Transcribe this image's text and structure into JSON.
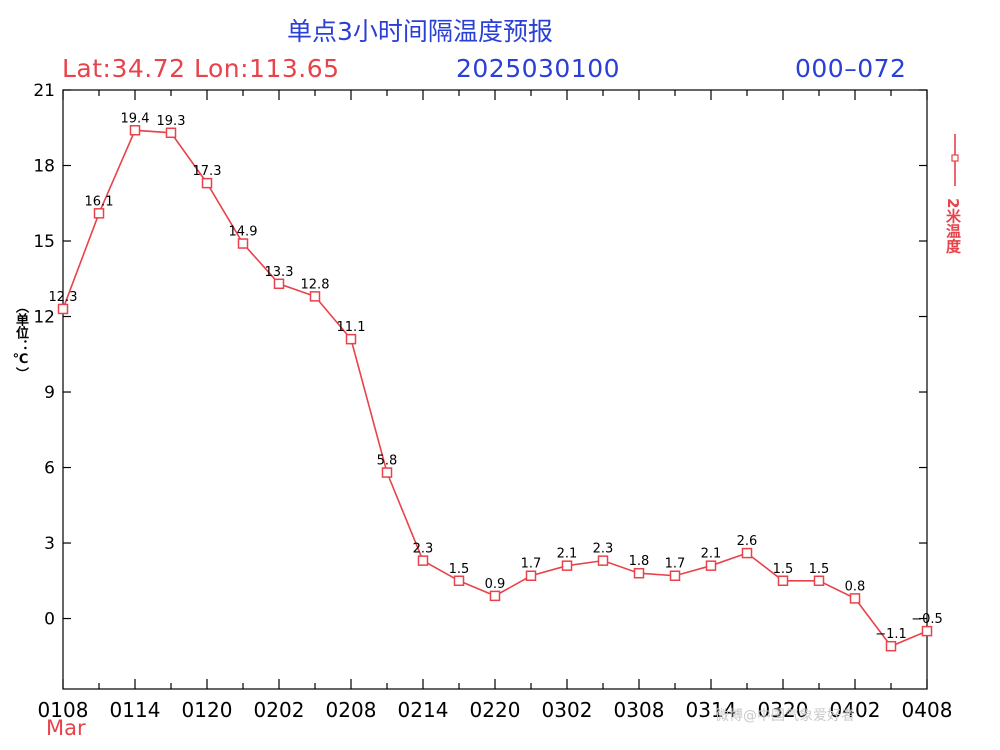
{
  "header": {
    "title": "单点3小时间隔温度预报",
    "lat_lon": "Lat:34.72  Lon:113.65",
    "init_time": "2025030100",
    "forecast_range": "000–072"
  },
  "x_month_label": "Mar",
  "watermark": "微博@中国气象爱好者",
  "colors": {
    "series": "#e8424a",
    "title_blue": "#2a3fd6",
    "axis": "#000000"
  },
  "chart_data": {
    "type": "line",
    "title": "单点3小时间隔温度预报",
    "ylabel": "（单位：℃）",
    "xlabel": "",
    "ylim": [
      -2.8,
      21
    ],
    "yticks": [
      0,
      3,
      6,
      9,
      12,
      15,
      18,
      21
    ],
    "x_tick_labels": [
      "0108",
      "0114",
      "0120",
      "0202",
      "0208",
      "0214",
      "0220",
      "0302",
      "0308",
      "0314",
      "0320",
      "0402",
      "0408"
    ],
    "x": [
      "0108",
      "0111",
      "0114",
      "0117",
      "0120",
      "0123",
      "0202",
      "0205",
      "0208",
      "0211",
      "0214",
      "0217",
      "0220",
      "0223",
      "0302",
      "0305",
      "0308",
      "0311",
      "0314",
      "0317",
      "0320",
      "0323",
      "0402",
      "0405",
      "0408"
    ],
    "grid": false,
    "legend_position": "right",
    "series": [
      {
        "name": "2米温度",
        "color": "#e8424a",
        "marker": "square",
        "values": [
          12.3,
          16.1,
          19.4,
          19.3,
          17.3,
          14.9,
          13.3,
          12.8,
          11.1,
          5.8,
          2.3,
          1.5,
          0.9,
          1.7,
          2.1,
          2.3,
          1.8,
          1.7,
          2.1,
          2.6,
          1.5,
          1.5,
          0.8,
          -1.1,
          -0.5
        ],
        "labels": [
          "12.3",
          "16.1",
          "19.4",
          "19.3",
          "17.3",
          "14.9",
          "13.3",
          "12.8",
          "11.1",
          "5.8",
          "2.3",
          "1.5",
          "0.9",
          "1.7",
          "2.1",
          "2.3",
          "1.8",
          "1.7",
          "2.1",
          "2.6",
          "1.5",
          "1.5",
          "0.8",
          "−1.1",
          "−0.5"
        ]
      }
    ]
  }
}
